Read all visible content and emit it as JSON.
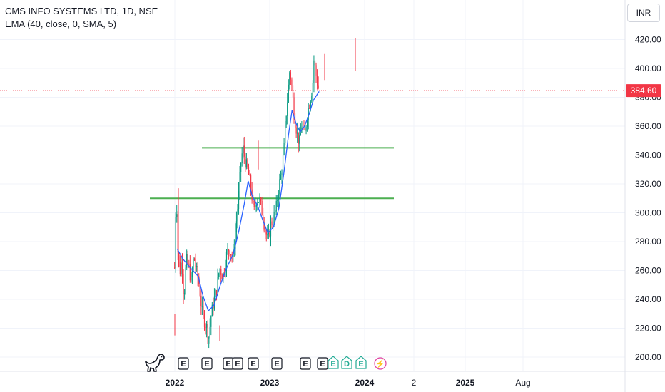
{
  "header": {
    "title": "CMS INFO SYSTEMS LTD, 1D, NSE",
    "indicator": "EMA (40, close, 0, SMA, 5)",
    "currency": "INR"
  },
  "price_marker": {
    "value": "384.60",
    "color": "#f23645"
  },
  "colors": {
    "up": "#089981",
    "down": "#f23645",
    "ema": "#2962ff",
    "support": "#4caf50",
    "grid": "#f0f3fa",
    "axis_text": "#131722"
  },
  "chart_data": {
    "type": "candlestick",
    "title": "CMS INFO SYSTEMS LTD, 1D, NSE",
    "ylim": [
      190,
      430
    ],
    "y_ticks": [
      "200.00",
      "220.00",
      "240.00",
      "260.00",
      "280.00",
      "300.00",
      "320.00",
      "340.00",
      "360.00",
      "380.00",
      "400.00",
      "420.00"
    ],
    "x_ticks": [
      "2022",
      "2023",
      "2024",
      "2",
      "2025",
      "Aug"
    ],
    "last_price": 384.6,
    "price_path": [
      [
        "2021-12-31",
        262
      ],
      [
        "2022-01-04",
        298
      ],
      [
        "2022-01-07",
        315
      ],
      [
        "2022-01-12",
        275
      ],
      [
        "2022-01-20",
        258
      ],
      [
        "2022-01-28",
        268
      ],
      [
        "2022-02-05",
        240
      ],
      [
        "2022-02-14",
        268
      ],
      [
        "2022-02-24",
        262
      ],
      [
        "2022-03-05",
        252
      ],
      [
        "2022-03-15",
        270
      ],
      [
        "2022-03-25",
        260
      ],
      [
        "2022-04-05",
        250
      ],
      [
        "2022-04-15",
        232
      ],
      [
        "2022-04-25",
        225
      ],
      [
        "2022-05-05",
        220
      ],
      [
        "2022-05-12",
        214
      ],
      [
        "2022-05-20",
        228
      ],
      [
        "2022-05-30",
        238
      ],
      [
        "2022-06-10",
        246
      ],
      [
        "2022-06-22",
        262
      ],
      [
        "2022-07-05",
        256
      ],
      [
        "2022-07-18",
        270
      ],
      [
        "2022-07-30",
        276
      ],
      [
        "2022-08-12",
        268
      ],
      [
        "2022-08-25",
        292
      ],
      [
        "2022-09-05",
        315
      ],
      [
        "2022-09-12",
        335
      ],
      [
        "2022-09-20",
        345
      ],
      [
        "2022-09-28",
        336
      ],
      [
        "2022-10-08",
        330
      ],
      [
        "2022-10-20",
        318
      ],
      [
        "2022-11-01",
        300
      ],
      [
        "2022-11-12",
        310
      ],
      [
        "2022-11-24",
        308
      ],
      [
        "2022-12-05",
        298
      ],
      [
        "2022-12-15",
        288
      ],
      [
        "2022-12-25",
        280
      ],
      [
        "2023-01-05",
        292
      ],
      [
        "2023-01-15",
        296
      ],
      [
        "2023-01-25",
        302
      ],
      [
        "2023-02-05",
        318
      ],
      [
        "2023-02-15",
        328
      ],
      [
        "2023-02-25",
        345
      ],
      [
        "2023-03-05",
        368
      ],
      [
        "2023-03-12",
        382
      ],
      [
        "2023-03-18",
        398
      ],
      [
        "2023-03-25",
        392
      ],
      [
        "2023-04-05",
        368
      ],
      [
        "2023-04-15",
        356
      ],
      [
        "2023-04-25",
        348
      ],
      [
        "2023-05-05",
        362
      ],
      [
        "2023-05-15",
        352
      ],
      [
        "2023-05-25",
        368
      ],
      [
        "2023-06-05",
        378
      ],
      [
        "2023-06-15",
        388
      ],
      [
        "2023-06-20",
        406
      ],
      [
        "2023-06-28",
        396
      ],
      [
        "2023-07-05",
        388
      ],
      [
        "2023-07-10",
        384.6
      ]
    ],
    "ema": [
      [
        "2022-01-10",
        275
      ],
      [
        "2022-02-01",
        268
      ],
      [
        "2022-03-01",
        262
      ],
      [
        "2022-04-01",
        256
      ],
      [
        "2022-04-20",
        242
      ],
      [
        "2022-05-10",
        232
      ],
      [
        "2022-06-01",
        236
      ],
      [
        "2022-06-25",
        250
      ],
      [
        "2022-07-20",
        262
      ],
      [
        "2022-08-15",
        272
      ],
      [
        "2022-09-05",
        288
      ],
      [
        "2022-09-25",
        306
      ],
      [
        "2022-10-10",
        322
      ],
      [
        "2022-10-25",
        312
      ],
      [
        "2022-11-15",
        305
      ],
      [
        "2022-12-05",
        295
      ],
      [
        "2022-12-25",
        286
      ],
      [
        "2023-01-15",
        290
      ],
      [
        "2023-02-05",
        303
      ],
      [
        "2023-02-25",
        328
      ],
      [
        "2023-03-15",
        355
      ],
      [
        "2023-03-28",
        371
      ],
      [
        "2023-04-12",
        362
      ],
      [
        "2023-04-28",
        356
      ],
      [
        "2023-05-15",
        360
      ],
      [
        "2023-06-01",
        368
      ],
      [
        "2023-06-18",
        378
      ],
      [
        "2023-07-10",
        384
      ]
    ],
    "support_lines": [
      {
        "price": 310,
        "from": "2021-12-01",
        "to": "2023-07-15"
      },
      {
        "price": 345,
        "from": "2022-06-15",
        "to": "2023-07-15"
      }
    ],
    "events": [
      {
        "date": "2022-01-25",
        "label": "E",
        "kind": "earnings"
      },
      {
        "date": "2022-03-20",
        "label": "E",
        "kind": "earnings"
      },
      {
        "date": "2022-05-25",
        "label": "E",
        "kind": "earnings"
      },
      {
        "date": "2022-06-05",
        "label": "E",
        "kind": "earnings"
      },
      {
        "date": "2022-06-25",
        "label": "E",
        "kind": "earnings"
      },
      {
        "date": "2022-07-25",
        "label": "E",
        "kind": "earnings"
      },
      {
        "date": "2022-10-15",
        "label": "E",
        "kind": "earnings"
      },
      {
        "date": "2023-01-20",
        "label": "E",
        "kind": "earnings"
      },
      {
        "date": "2023-02-15",
        "label": "E",
        "kind": "earnings-up"
      },
      {
        "date": "2023-03-05",
        "label": "D",
        "kind": "dividend"
      },
      {
        "date": "2023-04-05",
        "label": "E",
        "kind": "earnings-up"
      },
      {
        "date": "2023-04-25",
        "label": "⚡",
        "kind": "split"
      },
      {
        "date": "2023-07-05",
        "label": "E",
        "kind": "earnings-future"
      }
    ]
  }
}
